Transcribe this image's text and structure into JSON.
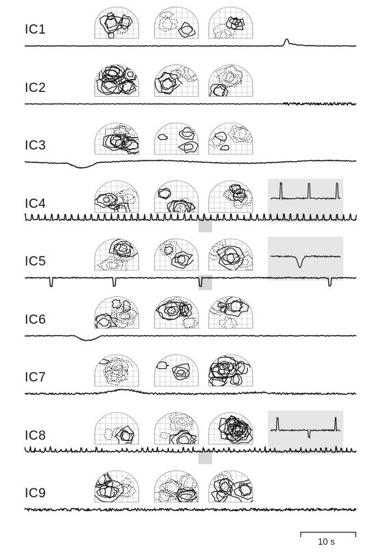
{
  "components": [
    {
      "label": "IC1",
      "inset": false,
      "trace": "spike_late",
      "seed": 11
    },
    {
      "label": "IC2",
      "inset": false,
      "trace": "noise_late",
      "seed": 23
    },
    {
      "label": "IC3",
      "inset": false,
      "trace": "drift_dip",
      "seed": 37
    },
    {
      "label": "IC4",
      "inset": true,
      "inset_type": "spikes",
      "trace": "periodic_spikes",
      "seed": 41
    },
    {
      "label": "IC5",
      "inset": true,
      "inset_type": "dip",
      "trace": "negative_spikes",
      "seed": 53
    },
    {
      "label": "IC6",
      "inset": false,
      "trace": "drift_dip_small",
      "seed": 61
    },
    {
      "label": "IC7",
      "inset": false,
      "trace": "hump",
      "seed": 71
    },
    {
      "label": "IC8",
      "inset": true,
      "inset_type": "spikes_sparse",
      "trace": "dense_spikes",
      "seed": 83
    },
    {
      "label": "IC9",
      "inset": false,
      "trace": "noise",
      "seed": 97
    }
  ],
  "scale_bar": {
    "label": "10 s"
  },
  "colors": {
    "trace": "#111111",
    "inset_bg": "#e6e6e6",
    "grid": "#bbbbbb",
    "highlight": "#d6d6d6"
  }
}
